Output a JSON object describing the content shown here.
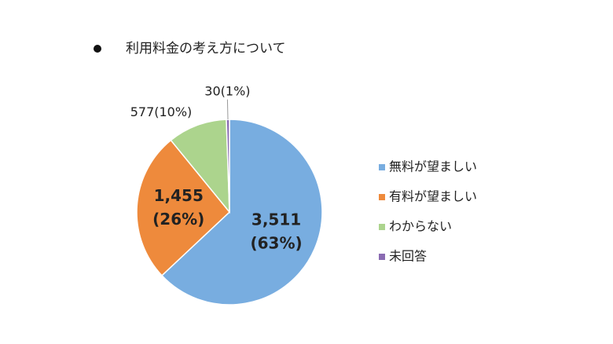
{
  "chart_data": {
    "type": "pie",
    "title": "利用料金の考え方について",
    "categories": [
      "無料が望ましい",
      "有料が望ましい",
      "わからない",
      "未回答"
    ],
    "values": [
      3511,
      1455,
      577,
      30
    ],
    "value_labels": [
      "3,511",
      "1,455",
      "577",
      "30"
    ],
    "percent_labels": [
      "(63%)",
      "(26%)",
      "(10%)",
      "(1%)"
    ],
    "colors": [
      "#78ade0",
      "#ee8a3c",
      "#acd48d",
      "#8a6bb2"
    ],
    "legend": "right"
  }
}
